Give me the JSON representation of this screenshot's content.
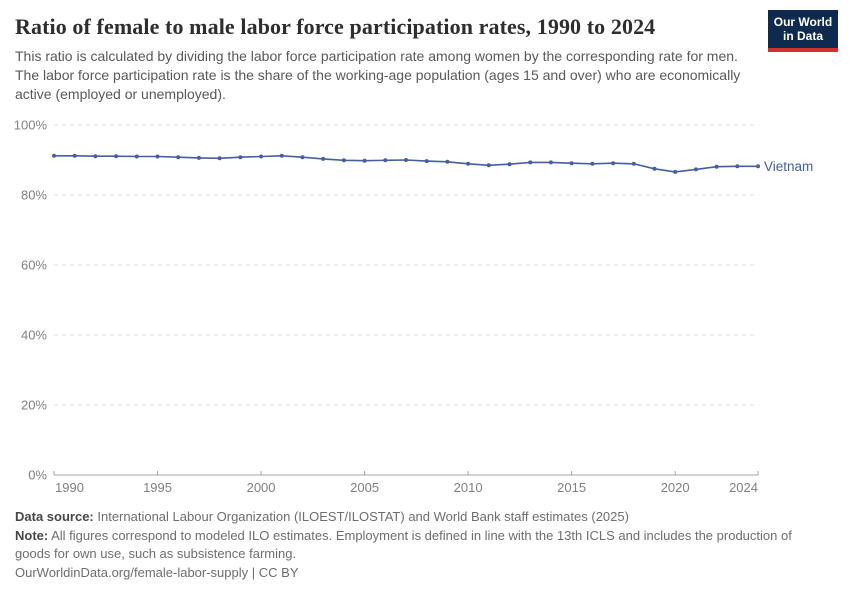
{
  "header": {
    "title": "Ratio of female to male labor force participation rates, 1990 to 2024",
    "subtitle": "This ratio is calculated by dividing the labor force participation rate among women by the corresponding rate for men. The labor force participation rate is the share of the working-age population (ages 15 and over) who are economically active (employed or unemployed).",
    "logo_line1": "Our World",
    "logo_line2": "in Data"
  },
  "chart_data": {
    "type": "line",
    "title": "Ratio of female to male labor force participation rates, 1990 to 2024",
    "x": [
      1990,
      1991,
      1992,
      1993,
      1994,
      1995,
      1996,
      1997,
      1998,
      1999,
      2000,
      2001,
      2002,
      2003,
      2004,
      2005,
      2006,
      2007,
      2008,
      2009,
      2010,
      2011,
      2012,
      2013,
      2014,
      2015,
      2016,
      2017,
      2018,
      2019,
      2020,
      2021,
      2022,
      2023,
      2024
    ],
    "series": [
      {
        "name": "Vietnam",
        "values": [
          91.2,
          91.2,
          91.1,
          91.1,
          91.0,
          91.0,
          90.8,
          90.6,
          90.5,
          90.8,
          91.0,
          91.2,
          90.8,
          90.3,
          89.9,
          89.8,
          89.9,
          90.0,
          89.7,
          89.5,
          88.9,
          88.5,
          88.8,
          89.3,
          89.3,
          89.1,
          88.9,
          89.1,
          88.9,
          87.5,
          86.6,
          87.3,
          88.1,
          88.2,
          88.2
        ]
      }
    ],
    "ylim": [
      0,
      100
    ],
    "yticks": [
      0,
      20,
      40,
      60,
      80,
      100
    ],
    "ytick_suffix": "%",
    "xticks": [
      1990,
      1995,
      2000,
      2005,
      2010,
      2015,
      2020,
      2024
    ],
    "grid": "horizontal-dashed",
    "legend": "end-of-line-label",
    "xlabel": "",
    "ylabel": ""
  },
  "colors": {
    "line": "#47609c",
    "entity_label": "#47609c",
    "gridline": "#dedede",
    "axis": "#a5a5a5",
    "tick_label": "#818181",
    "logo_bg": "#0e2a4e",
    "logo_stripe": "#d0312f"
  },
  "footer": {
    "data_source_label": "Data source:",
    "data_source_text": "International Labour Organization (ILOEST/ILOSTAT) and World Bank staff estimates (2025)",
    "note_label": "Note:",
    "note_text": "All figures correspond to modeled ILO estimates. Employment is defined in line with the 13th ICLS and includes the production of goods for own use, such as subsistence farming.",
    "url": "OurWorldinData.org/female-labor-supply",
    "separator": "|",
    "license": "CC BY"
  }
}
